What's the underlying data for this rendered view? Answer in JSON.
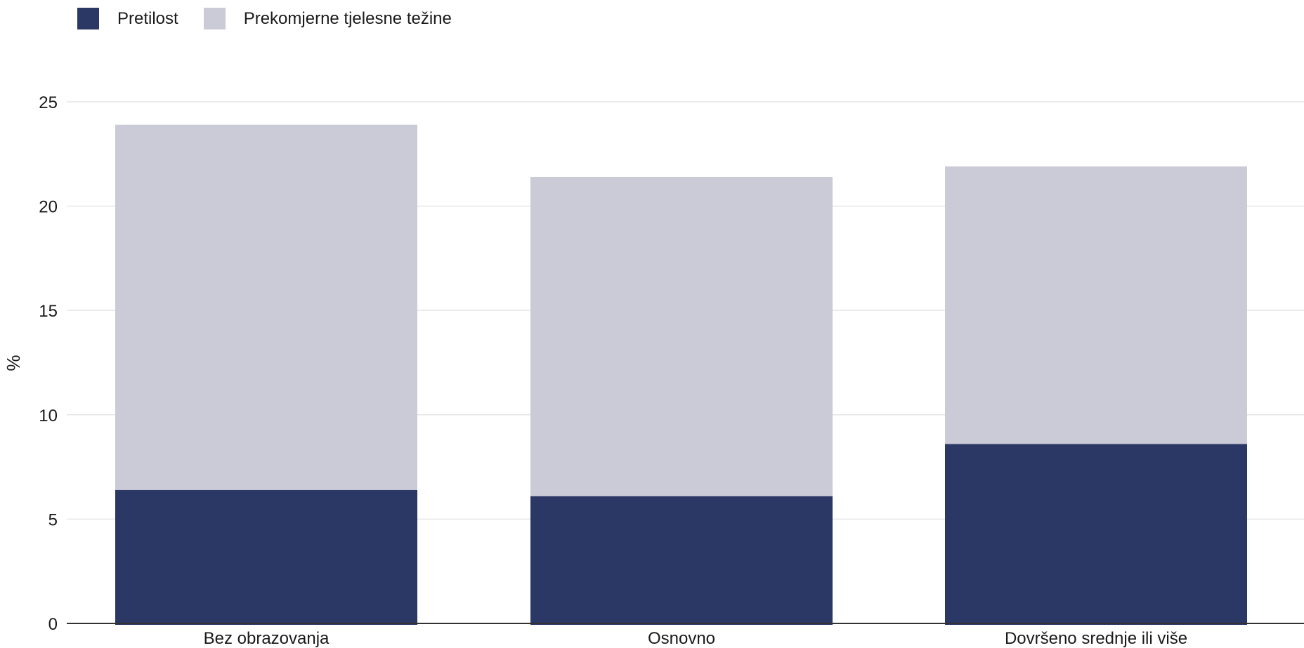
{
  "chart_data": {
    "type": "bar",
    "stacked": true,
    "categories": [
      "Bez obrazovanja",
      "Osnovno",
      "Dovršeno srednje ili više"
    ],
    "series": [
      {
        "name": "Pretilost",
        "color": "#2b3764",
        "values": [
          6.4,
          6.1,
          8.6
        ]
      },
      {
        "name": "Prekomjerne tjelesne težine",
        "color": "#cacbd7",
        "values": [
          17.5,
          15.3,
          13.3
        ]
      }
    ],
    "ylabel": "%",
    "ylim": [
      0,
      25
    ],
    "yticks": [
      0,
      5,
      10,
      15,
      20,
      25
    ],
    "grid": true,
    "legend_position": "top-left"
  }
}
